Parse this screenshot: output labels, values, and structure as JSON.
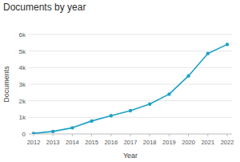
{
  "chart_data": {
    "type": "line",
    "title": "Documents by year",
    "x_label": "Year",
    "y_label": "Documents",
    "x": [
      2012,
      2013,
      2014,
      2015,
      2016,
      2017,
      2018,
      2019,
      2020,
      2021,
      2022
    ],
    "values": [
      30,
      150,
      370,
      780,
      1100,
      1400,
      1800,
      2400,
      3500,
      4850,
      5400
    ],
    "color": "#1fa1c4",
    "marker": "circle",
    "xlim": [
      2012,
      2022
    ],
    "xticks": [
      2012,
      2013,
      2014,
      2015,
      2016,
      2017,
      2018,
      2019,
      2020,
      2021,
      2022
    ],
    "ylim": [
      0,
      6000
    ],
    "yticks": [
      0,
      {
        "value": 1000,
        "label": "1k"
      },
      {
        "value": 2000,
        "label": "2k"
      },
      {
        "value": 3000,
        "label": "3k"
      },
      {
        "value": 4000,
        "label": "4k"
      },
      {
        "value": 5000,
        "label": "5k"
      },
      {
        "value": 6000,
        "label": "6k"
      }
    ],
    "grid": true
  }
}
